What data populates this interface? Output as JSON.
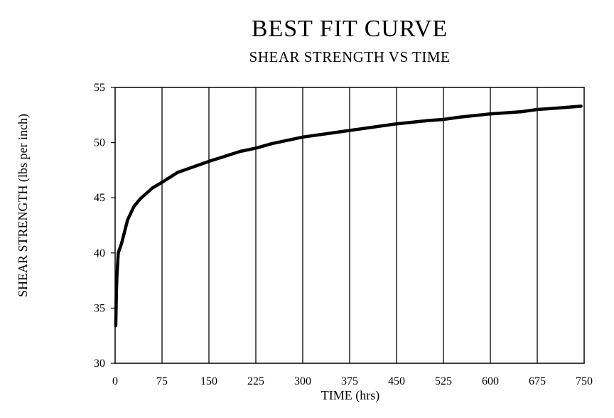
{
  "chart_data": {
    "type": "line",
    "title": "BEST FIT CURVE",
    "subtitle": "SHEAR STRENGTH VS TIME",
    "xlabel": "TIME (hrs)",
    "ylabel": "SHEAR STRENGTH (lbs per inch)",
    "xlim": [
      0,
      750
    ],
    "ylim": [
      30,
      55
    ],
    "x_ticks": [
      0,
      75,
      150,
      225,
      300,
      375,
      450,
      525,
      600,
      675,
      750
    ],
    "y_ticks": [
      30,
      35,
      40,
      45,
      50,
      55
    ],
    "grid": "vertical",
    "series": [
      {
        "x": [
          1,
          2,
          3,
          5,
          10,
          20,
          30,
          40,
          50,
          60,
          75,
          100,
          150,
          200,
          225,
          250,
          300,
          350,
          375,
          400,
          450,
          500,
          525,
          550,
          600,
          650,
          675,
          700,
          745
        ],
        "y": [
          33.4,
          36.5,
          38.0,
          40.0,
          40.8,
          43.0,
          44.2,
          44.9,
          45.4,
          45.9,
          46.4,
          47.3,
          48.3,
          49.2,
          49.5,
          49.9,
          50.5,
          50.9,
          51.1,
          51.3,
          51.7,
          52.0,
          52.1,
          52.3,
          52.6,
          52.8,
          53.0,
          53.1,
          53.3
        ]
      }
    ]
  }
}
